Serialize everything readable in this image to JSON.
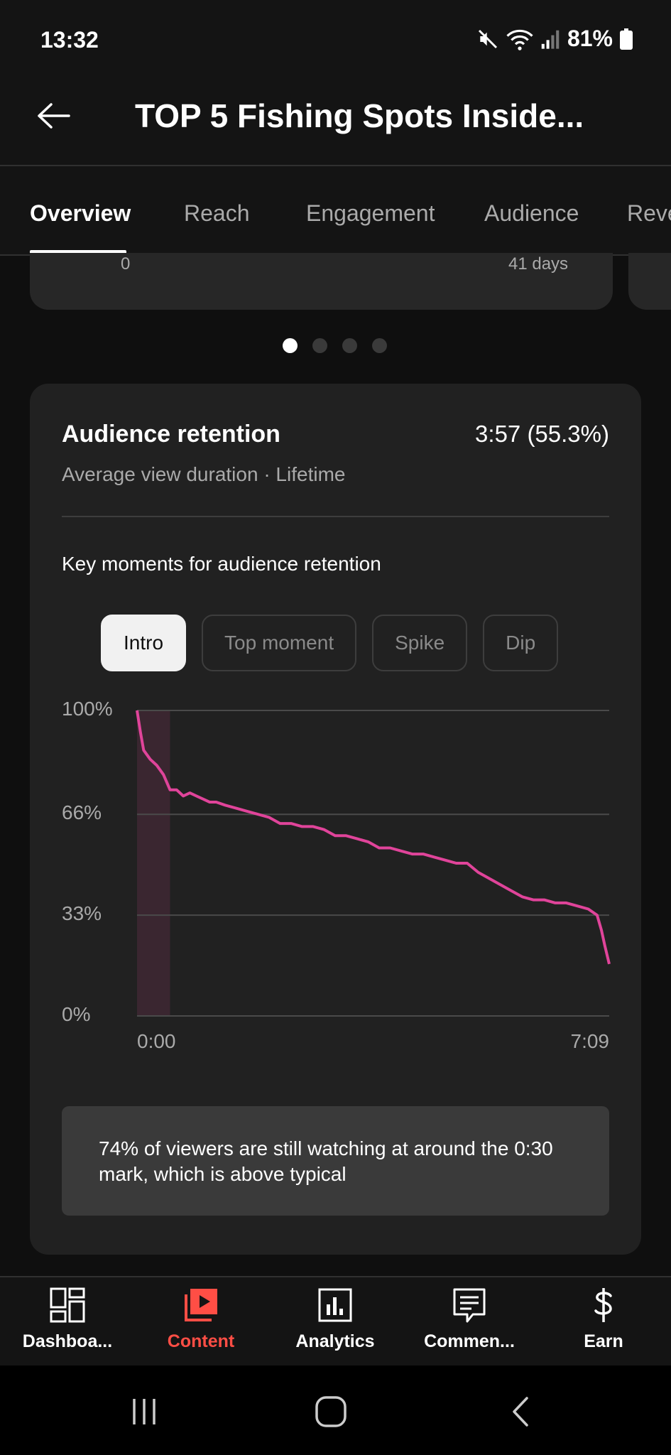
{
  "status_bar": {
    "time": "13:32",
    "battery": "81%"
  },
  "header": {
    "title": "TOP 5 Fishing Spots Inside..."
  },
  "tabs": [
    "Overview",
    "Reach",
    "Engagement",
    "Audience",
    "Revenue"
  ],
  "active_tab": "Overview",
  "previous_card": {
    "left_label": "0",
    "right_label": "41 days"
  },
  "carousel": {
    "count": 4,
    "active": 0
  },
  "retention_card": {
    "title": "Audience retention",
    "value": "3:57 (55.3%)",
    "subtitle": "Average view duration · Lifetime",
    "key_moments_label": "Key moments for audience retention",
    "chips": [
      "Intro",
      "Top moment",
      "Spike",
      "Dip"
    ],
    "selected_chip": "Intro",
    "insight": "74% of viewers are still watching at around the 0:30 mark, which is above typical"
  },
  "chart_data": {
    "type": "line",
    "x_label_start": "0:00",
    "x_label_end": "7:09",
    "y_ticks": [
      "0%",
      "33%",
      "66%",
      "100%"
    ],
    "ylim": [
      0,
      100
    ],
    "xlim_seconds": [
      0,
      429
    ],
    "highlight_range_seconds": [
      0,
      30
    ],
    "line_color": "#e0449a",
    "series": [
      {
        "x_seconds": [
          0,
          3,
          6,
          12,
          18,
          24,
          30,
          36,
          42,
          48,
          54,
          60,
          66,
          72,
          80,
          90,
          100,
          110,
          120,
          130,
          140,
          150,
          160,
          170,
          180,
          190,
          200,
          210,
          220,
          230,
          240,
          250,
          260,
          270,
          280,
          290,
          300,
          310,
          320,
          330,
          340,
          350,
          360,
          370,
          380,
          390,
          400,
          410,
          418,
          422,
          425,
          429
        ],
        "y_percent": [
          100,
          93,
          87,
          84,
          82,
          79,
          74,
          74,
          72,
          73,
          72,
          71,
          70,
          70,
          69,
          68,
          67,
          66,
          65,
          63,
          63,
          62,
          62,
          61,
          59,
          59,
          58,
          57,
          55,
          55,
          54,
          53,
          53,
          52,
          51,
          50,
          50,
          47,
          45,
          43,
          41,
          39,
          38,
          38,
          37,
          37,
          36,
          35,
          33,
          28,
          23,
          17
        ]
      }
    ]
  },
  "bottom_nav": [
    {
      "label": "Dashboa...",
      "icon": "dashboard-icon"
    },
    {
      "label": "Content",
      "icon": "content-icon"
    },
    {
      "label": "Analytics",
      "icon": "analytics-icon"
    },
    {
      "label": "Commen...",
      "icon": "comments-icon"
    },
    {
      "label": "Earn",
      "icon": "dollar-icon"
    }
  ],
  "active_nav": "Content",
  "accent_color": "#ff4e45"
}
